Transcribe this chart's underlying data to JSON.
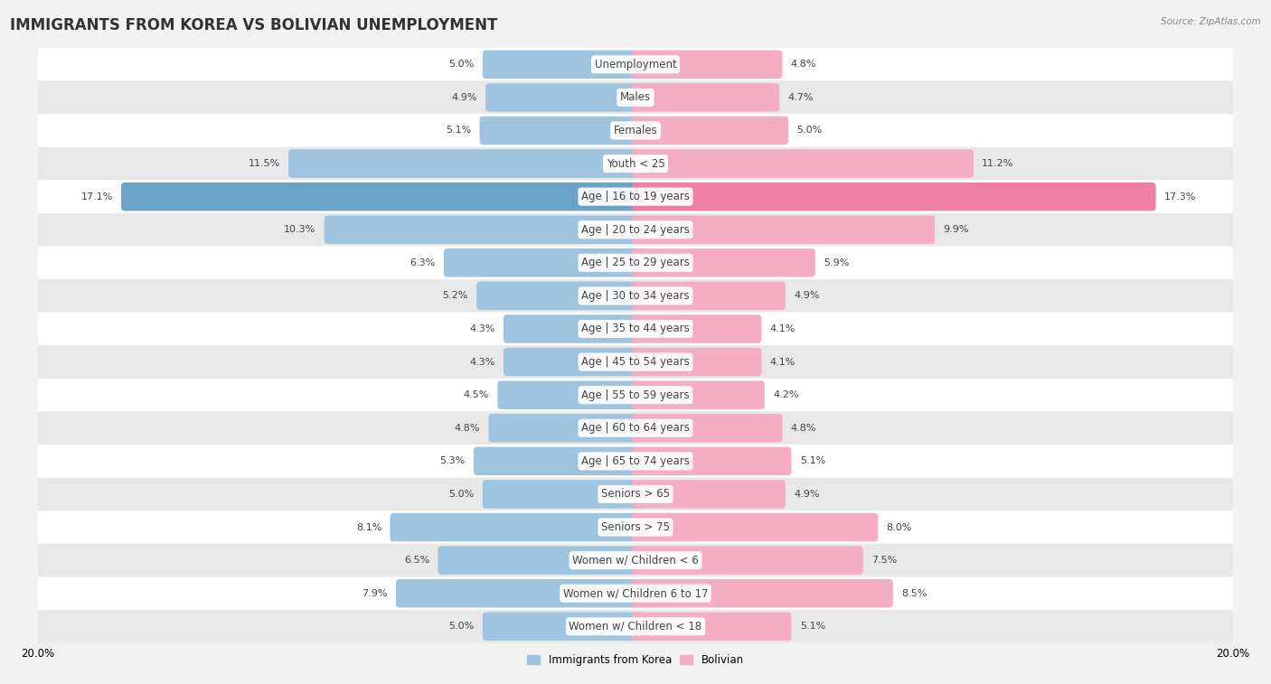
{
  "title": "IMMIGRANTS FROM KOREA VS BOLIVIAN UNEMPLOYMENT",
  "source": "Source: ZipAtlas.com",
  "categories": [
    "Unemployment",
    "Males",
    "Females",
    "Youth < 25",
    "Age | 16 to 19 years",
    "Age | 20 to 24 years",
    "Age | 25 to 29 years",
    "Age | 30 to 34 years",
    "Age | 35 to 44 years",
    "Age | 45 to 54 years",
    "Age | 55 to 59 years",
    "Age | 60 to 64 years",
    "Age | 65 to 74 years",
    "Seniors > 65",
    "Seniors > 75",
    "Women w/ Children < 6",
    "Women w/ Children 6 to 17",
    "Women w/ Children < 18"
  ],
  "korea_values": [
    5.0,
    4.9,
    5.1,
    11.5,
    17.1,
    10.3,
    6.3,
    5.2,
    4.3,
    4.3,
    4.5,
    4.8,
    5.3,
    5.0,
    8.1,
    6.5,
    7.9,
    5.0
  ],
  "bolivian_values": [
    4.8,
    4.7,
    5.0,
    11.2,
    17.3,
    9.9,
    5.9,
    4.9,
    4.1,
    4.1,
    4.2,
    4.8,
    5.1,
    4.9,
    8.0,
    7.5,
    8.5,
    5.1
  ],
  "korea_color": "#9ec4df",
  "bolivian_color": "#f4adc2",
  "korea_highlight_color": "#6ba3c8",
  "bolivian_highlight_color": "#ef7fa4",
  "background_color": "#f2f2f2",
  "row_even_color": "#ffffff",
  "row_odd_color": "#e8e8e8",
  "axis_max": 20.0,
  "bar_height": 0.62,
  "legend_korea": "Immigrants from Korea",
  "legend_bolivian": "Bolivian",
  "title_fontsize": 12,
  "label_fontsize": 8.5,
  "value_fontsize": 8.0
}
